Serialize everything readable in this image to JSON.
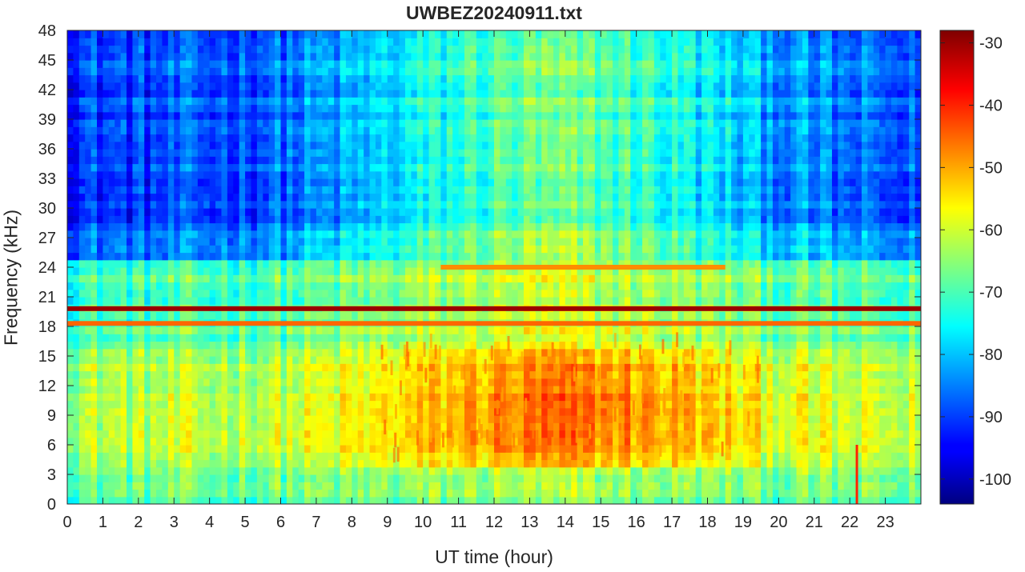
{
  "chart_data": {
    "type": "heatmap",
    "title": "UWBEZ20240911.txt",
    "xlabel": "UT time (hour)",
    "ylabel": "Frequency (kHz)",
    "xlim": [
      0,
      24
    ],
    "ylim": [
      0,
      48
    ],
    "x_ticks": [
      "0",
      "1",
      "2",
      "3",
      "4",
      "5",
      "6",
      "7",
      "8",
      "9",
      "10",
      "11",
      "12",
      "13",
      "14",
      "15",
      "16",
      "17",
      "18",
      "19",
      "20",
      "21",
      "22",
      "23"
    ],
    "y_ticks": [
      "0",
      "3",
      "6",
      "9",
      "12",
      "15",
      "18",
      "21",
      "24",
      "27",
      "30",
      "33",
      "36",
      "39",
      "42",
      "45",
      "48"
    ],
    "colorbar": {
      "colormap": "jet",
      "range": [
        -104,
        -28
      ],
      "ticks": [
        "-100",
        "-90",
        "-80",
        "-70",
        "-60",
        "-50",
        "-40",
        "-30"
      ]
    },
    "features": [
      {
        "description": "strong narrowband transmitter",
        "freq_khz": 19.8,
        "time_range_h": [
          0,
          24
        ],
        "level_db": -30
      },
      {
        "description": "narrowband line",
        "freq_khz": 18.3,
        "time_range_h": [
          0,
          24
        ],
        "level_db": -45
      },
      {
        "description": "narrowband line",
        "freq_khz": 24.0,
        "time_range_h": [
          10.5,
          18.5
        ],
        "level_db": -48
      },
      {
        "description": "broadband enhancement",
        "freq_range_khz": [
          4,
          16
        ],
        "time_range_h": [
          8.5,
          19.5
        ],
        "level_db": -48
      },
      {
        "description": "transient spike",
        "freq_range_khz": [
          0,
          6
        ],
        "time_h": 22.2,
        "level_db": -40
      }
    ]
  }
}
